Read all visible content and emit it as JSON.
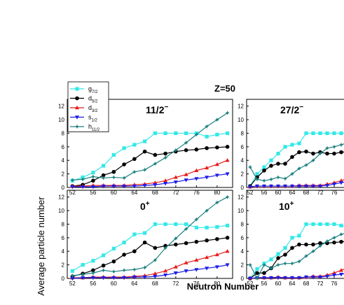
{
  "figure": {
    "header": "Z=50",
    "ylabel": "Average particle number",
    "xlabel": "Neutron Number"
  },
  "legend": [
    {
      "orbital": "g",
      "sub": "7/2",
      "color": "#33e8e8",
      "marker": "square"
    },
    {
      "orbital": "d",
      "sub": "5/2",
      "color": "#000000",
      "marker": "circle"
    },
    {
      "orbital": "d",
      "sub": "3/2",
      "color": "#e81c1c",
      "marker": "triangle-up"
    },
    {
      "orbital": "s",
      "sub": "1/2",
      "color": "#1c1ce8",
      "marker": "triangle-down"
    },
    {
      "orbital": "h",
      "sub": "11/2",
      "color": "#1a8080",
      "marker": "star"
    }
  ],
  "chart_data": [
    {
      "type": "line",
      "panel": "top-left",
      "state": "11/2",
      "state_sup": "−",
      "x": [
        52,
        54,
        56,
        58,
        60,
        62,
        64,
        66,
        68,
        70,
        72,
        74,
        76,
        78,
        80,
        82
      ],
      "xticks": [
        52,
        56,
        60,
        64,
        68,
        72,
        76,
        80
      ],
      "yticks": [
        0,
        2,
        4,
        6,
        8,
        10,
        12
      ],
      "ylim": [
        0,
        13
      ],
      "xlim": [
        51,
        83
      ],
      "series": [
        {
          "name": "g7/2",
          "values": [
            1.0,
            1.5,
            2.2,
            3.2,
            4.8,
            5.8,
            6.3,
            6.8,
            8.0,
            8.0,
            8.0,
            8.0,
            8.0,
            7.5,
            7.8,
            8.0
          ]
        },
        {
          "name": "d5/2",
          "values": [
            0.2,
            0.4,
            1.0,
            1.8,
            2.3,
            3.4,
            4.2,
            5.3,
            4.8,
            5.0,
            5.3,
            5.5,
            5.6,
            5.8,
            5.9,
            6.0
          ]
        },
        {
          "name": "d3/2",
          "values": [
            0.2,
            0.2,
            0.3,
            0.3,
            0.3,
            0.3,
            0.4,
            0.5,
            0.7,
            1.0,
            1.5,
            1.9,
            2.5,
            2.9,
            3.4,
            4.0
          ]
        },
        {
          "name": "s1/2",
          "values": [
            0.1,
            0.1,
            0.1,
            0.2,
            0.2,
            0.2,
            0.2,
            0.3,
            0.4,
            0.6,
            0.8,
            1.1,
            1.3,
            1.5,
            1.8,
            2.0
          ]
        },
        {
          "name": "h11/2",
          "values": [
            1.1,
            1.2,
            1.6,
            1.4,
            1.5,
            1.4,
            2.3,
            2.6,
            3.5,
            4.4,
            5.5,
            6.6,
            7.8,
            9.0,
            10.0,
            11.0
          ]
        }
      ]
    },
    {
      "type": "line",
      "panel": "top-right",
      "state": "27/2",
      "state_sup": "−",
      "x": [
        52,
        54,
        56,
        58,
        60,
        62,
        64,
        66,
        68,
        70,
        72,
        74,
        76,
        78,
        80,
        82
      ],
      "xticks": [
        52,
        56,
        60,
        64,
        68,
        72,
        76,
        80
      ],
      "yticks": [
        0,
        2,
        4,
        6,
        8,
        10,
        12
      ],
      "ylim": [
        0,
        13
      ],
      "xlim": [
        51,
        83
      ],
      "series": [
        {
          "name": "g7/2",
          "values": [
            0.2,
            2.0,
            3.0,
            4.0,
            5.0,
            6.0,
            6.3,
            6.5,
            8.0,
            8.0,
            8.0,
            8.0,
            8.0,
            8.0,
            8.0,
            8.0
          ]
        },
        {
          "name": "d5/2",
          "values": [
            0.2,
            1.5,
            2.5,
            3.2,
            3.5,
            3.5,
            4.5,
            5.2,
            5.3,
            5.0,
            5.2,
            5.0,
            5.0,
            5.2,
            5.3,
            5.5
          ]
        },
        {
          "name": "d3/2",
          "values": [
            0.1,
            0.2,
            0.2,
            0.2,
            0.2,
            0.2,
            0.2,
            0.3,
            0.3,
            0.3,
            0.3,
            0.5,
            0.7,
            1.0,
            1.4,
            1.8
          ]
        },
        {
          "name": "s1/2",
          "values": [
            0.1,
            0.2,
            0.2,
            0.2,
            0.2,
            0.2,
            0.2,
            0.2,
            0.2,
            0.2,
            0.2,
            0.3,
            0.5,
            0.7,
            0.9,
            1.0
          ]
        },
        {
          "name": "h11/2",
          "values": [
            3.0,
            1.2,
            1.0,
            1.2,
            1.5,
            1.3,
            2.0,
            2.8,
            3.3,
            4.0,
            5.0,
            5.8,
            6.0,
            6.3,
            6.6,
            7.0
          ]
        }
      ]
    },
    {
      "type": "line",
      "panel": "bottom-left",
      "state": "0",
      "state_sup": "+",
      "x": [
        52,
        54,
        56,
        58,
        60,
        62,
        64,
        66,
        68,
        70,
        72,
        74,
        76,
        78,
        80,
        82
      ],
      "xticks": [
        52,
        56,
        60,
        64,
        68,
        72,
        76,
        80
      ],
      "yticks": [
        0,
        2,
        4,
        6,
        8,
        10,
        12
      ],
      "ylim": [
        0,
        13
      ],
      "xlim": [
        51,
        83
      ],
      "series": [
        {
          "name": "g7/2",
          "values": [
            1.1,
            2.0,
            2.6,
            3.4,
            4.4,
            5.3,
            6.5,
            6.7,
            8.0,
            8.0,
            8.0,
            8.0,
            7.5,
            7.5,
            7.6,
            7.8
          ]
        },
        {
          "name": "d5/2",
          "values": [
            0.3,
            0.7,
            1.2,
            1.9,
            2.5,
            3.5,
            4.0,
            5.3,
            4.5,
            4.8,
            5.0,
            5.2,
            5.4,
            5.6,
            5.8,
            6.0
          ]
        },
        {
          "name": "d3/2",
          "values": [
            0.1,
            0.1,
            0.2,
            0.2,
            0.2,
            0.2,
            0.3,
            0.4,
            0.7,
            1.1,
            1.7,
            2.3,
            2.7,
            3.1,
            3.5,
            4.0
          ]
        },
        {
          "name": "s1/2",
          "values": [
            0.0,
            0.1,
            0.1,
            0.1,
            0.1,
            0.1,
            0.2,
            0.2,
            0.3,
            0.5,
            0.8,
            1.1,
            1.3,
            1.5,
            1.7,
            2.0
          ]
        },
        {
          "name": "h11/2",
          "values": [
            0.4,
            0.6,
            0.8,
            1.2,
            1.0,
            1.2,
            1.3,
            1.6,
            2.7,
            4.5,
            5.9,
            7.3,
            8.7,
            10.0,
            11.2,
            12.0
          ]
        }
      ]
    },
    {
      "type": "line",
      "panel": "bottom-right",
      "state": "10",
      "state_sup": "+",
      "x": [
        52,
        54,
        56,
        58,
        60,
        62,
        64,
        66,
        68,
        70,
        72,
        74,
        76,
        78,
        80,
        82
      ],
      "xticks": [
        52,
        56,
        60,
        64,
        68,
        72,
        76,
        80
      ],
      "yticks": [
        0,
        2,
        4,
        6,
        8,
        10,
        12
      ],
      "ylim": [
        0,
        13
      ],
      "xlim": [
        51,
        83
      ],
      "series": [
        {
          "name": "g7/2",
          "values": [
            0.0,
            1.4,
            2.2,
            2.8,
            3.6,
            4.5,
            6.0,
            6.3,
            8.0,
            8.0,
            8.0,
            8.0,
            8.0,
            7.8,
            7.6,
            7.5
          ]
        },
        {
          "name": "d5/2",
          "values": [
            0.0,
            0.8,
            0.8,
            1.5,
            3.0,
            3.5,
            4.5,
            5.0,
            5.0,
            5.0,
            5.2,
            5.2,
            5.3,
            5.4,
            5.5,
            5.6
          ]
        },
        {
          "name": "d3/2",
          "values": [
            0.0,
            0.1,
            0.1,
            0.1,
            0.2,
            0.1,
            0.1,
            0.1,
            0.2,
            0.3,
            0.3,
            0.5,
            0.8,
            1.2,
            1.6,
            2.0
          ]
        },
        {
          "name": "s1/2",
          "values": [
            0.0,
            0.1,
            0.1,
            0.1,
            0.1,
            0.1,
            0.1,
            0.1,
            0.2,
            0.2,
            0.2,
            0.3,
            0.5,
            0.6,
            0.8,
            1.0
          ]
        },
        {
          "name": "h11/2",
          "values": [
            2.0,
            0.0,
            2.0,
            1.5,
            2.0,
            2.2,
            2.2,
            2.5,
            3.3,
            4.0,
            4.8,
            5.5,
            6.0,
            6.5,
            6.8,
            7.0
          ]
        }
      ]
    }
  ]
}
